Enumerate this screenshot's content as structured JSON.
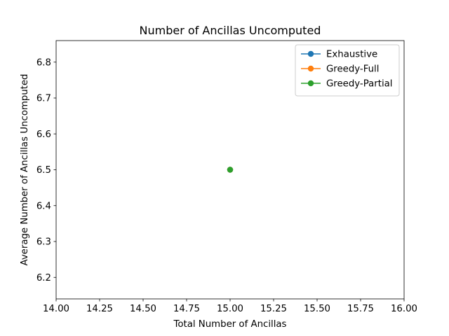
{
  "chart_data": {
    "type": "line",
    "title": "Number of Ancillas Uncomputed",
    "xlabel": "Total Number of Ancillas",
    "ylabel": "Average Number of Ancillas Uncomputed",
    "xlim": [
      14.0,
      16.0
    ],
    "ylim": [
      6.14,
      6.86
    ],
    "xticks": [
      "14.00",
      "14.25",
      "14.50",
      "14.75",
      "15.00",
      "15.25",
      "15.50",
      "15.75",
      "16.00"
    ],
    "yticks": [
      "6.2",
      "6.3",
      "6.4",
      "6.5",
      "6.6",
      "6.7",
      "6.8"
    ],
    "grid": false,
    "legend_position": "top-right",
    "series": [
      {
        "name": "Exhaustive",
        "x": [
          15.0
        ],
        "y": [
          6.5
        ],
        "color": "#1f77b4",
        "marker": "circle"
      },
      {
        "name": "Greedy-Full",
        "x": [
          15.0
        ],
        "y": [
          6.5
        ],
        "color": "#ff7f0e",
        "marker": "circle"
      },
      {
        "name": "Greedy-Partial",
        "x": [
          15.0
        ],
        "y": [
          6.5
        ],
        "color": "#2ca02c",
        "marker": "circle"
      }
    ]
  }
}
